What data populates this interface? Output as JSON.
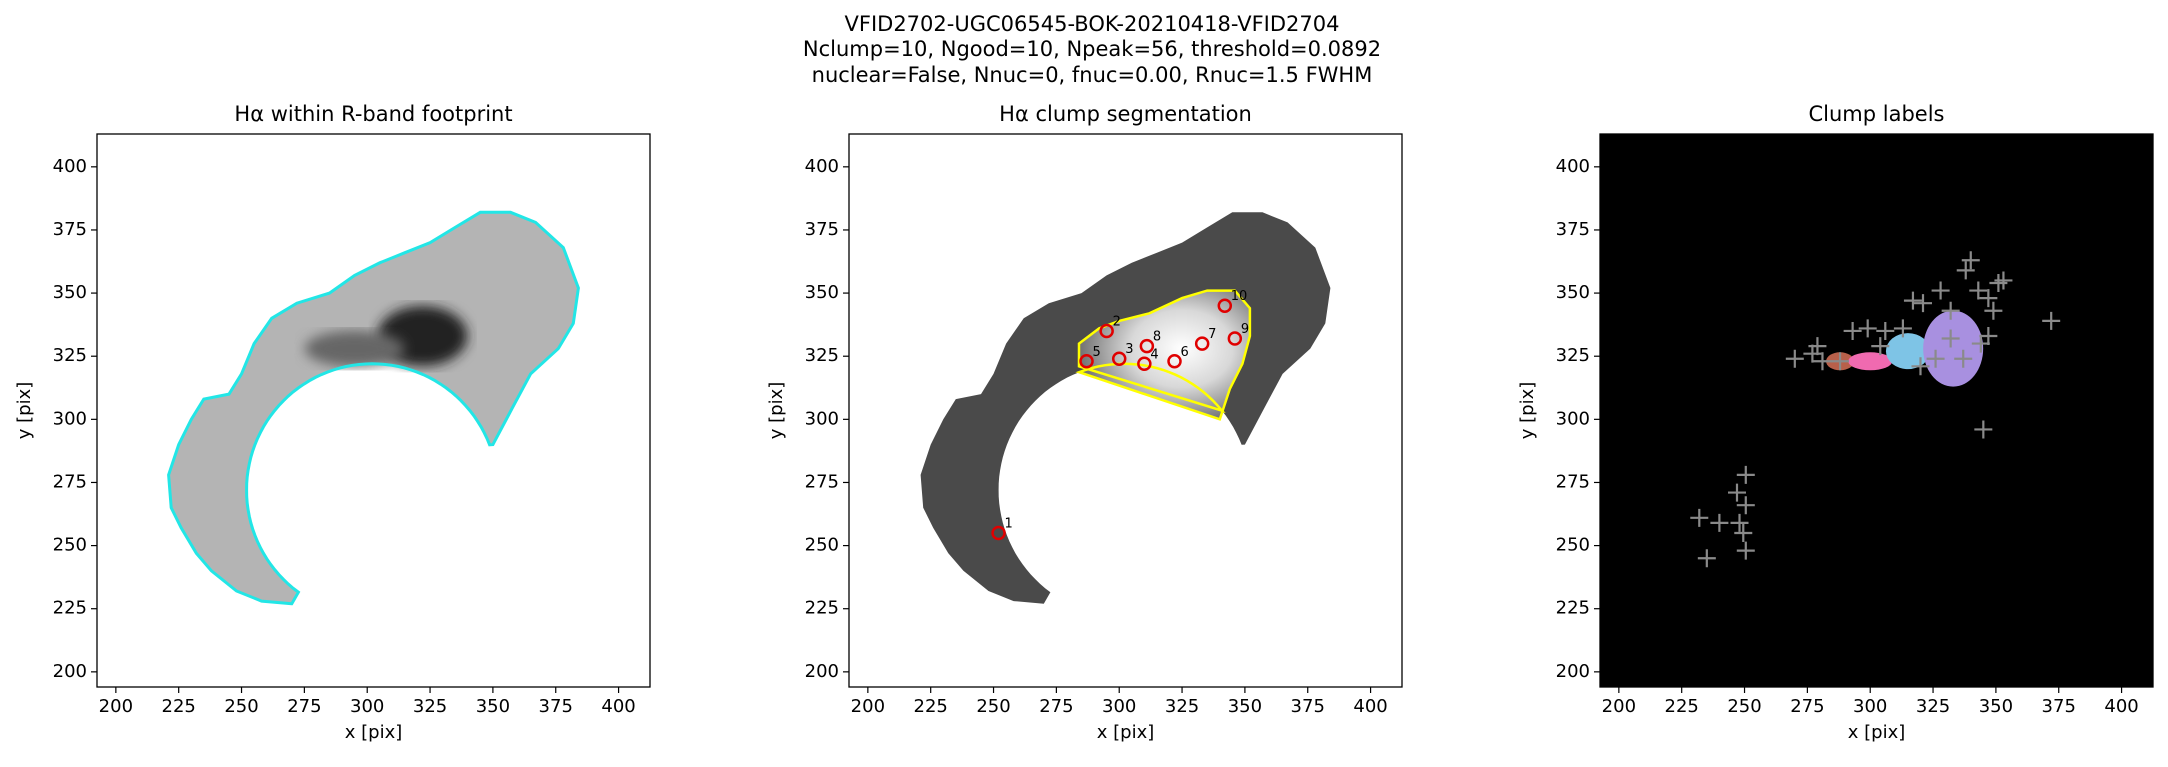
{
  "figure_title": [
    "VFID2702-UGC06545-BOK-20210418-VFID2704",
    "Nclump=10, Ngood=10, Npeak=56, threshold=0.0892",
    "nuclear=False, Nnuc=0, fnuc=0.00, Rnuc=1.5 FWHM"
  ],
  "chart_data": [
    {
      "type": "image",
      "title": "Hα within R-band footprint",
      "xlabel": "x [pix]",
      "ylabel": "y [pix]",
      "xlim": [
        192.5,
        412.5
      ],
      "ylim": [
        194,
        413
      ],
      "xticks": [
        200,
        225,
        250,
        275,
        300,
        325,
        350,
        375,
        400
      ],
      "yticks": [
        200,
        225,
        250,
        275,
        300,
        325,
        350,
        375,
        400
      ],
      "background": "#ffffff"
    },
    {
      "type": "image",
      "title": "Hα clump segmentation",
      "xlabel": "x [pix]",
      "ylabel": "y [pix]",
      "xlim": [
        192.5,
        412.5
      ],
      "ylim": [
        194,
        413
      ],
      "xticks": [
        200,
        225,
        250,
        275,
        300,
        325,
        350,
        375,
        400
      ],
      "yticks": [
        200,
        225,
        250,
        275,
        300,
        325,
        350,
        375,
        400
      ],
      "background": "#ffffff",
      "markers": {
        "x": [
          252,
          295,
          300,
          310,
          287,
          322,
          333,
          311,
          346,
          342
        ],
        "y": [
          255,
          335,
          324,
          322,
          323,
          323,
          330,
          329,
          332,
          345
        ],
        "labels": [
          "1",
          "2",
          "3",
          "4",
          "5",
          "6",
          "7",
          "8",
          "9",
          "10"
        ],
        "color": "#e00000"
      }
    },
    {
      "type": "image",
      "title": "Clump labels",
      "xlabel": "x [pix]",
      "ylabel": "y [pix]",
      "xlim": [
        192.5,
        412.5
      ],
      "ylim": [
        194,
        413
      ],
      "xticks": [
        200,
        225,
        250,
        275,
        300,
        325,
        350,
        375,
        400
      ],
      "yticks": [
        200,
        225,
        250,
        275,
        300,
        325,
        350,
        375,
        400
      ],
      "background": "#000000",
      "markers": {
        "x": [
          232,
          240,
          235,
          248,
          250.5,
          247,
          250.5,
          249.5,
          250.5,
          270,
          277,
          279,
          281,
          288,
          293,
          299,
          304,
          306,
          313,
          317,
          321,
          328,
          332,
          338,
          340,
          343,
          347,
          351,
          353,
          349,
          347,
          344,
          337,
          332,
          326,
          320,
          345,
          372
        ],
        "y": [
          261,
          259,
          245,
          259,
          278,
          271,
          266,
          255,
          248,
          324,
          326,
          329,
          323,
          323,
          335,
          336,
          329,
          335,
          336,
          347,
          346,
          351,
          343,
          359,
          363,
          351,
          348,
          354,
          355,
          343,
          333,
          330,
          324,
          332,
          324,
          321,
          296,
          339
        ],
        "color": "#8a8a8a"
      }
    }
  ]
}
